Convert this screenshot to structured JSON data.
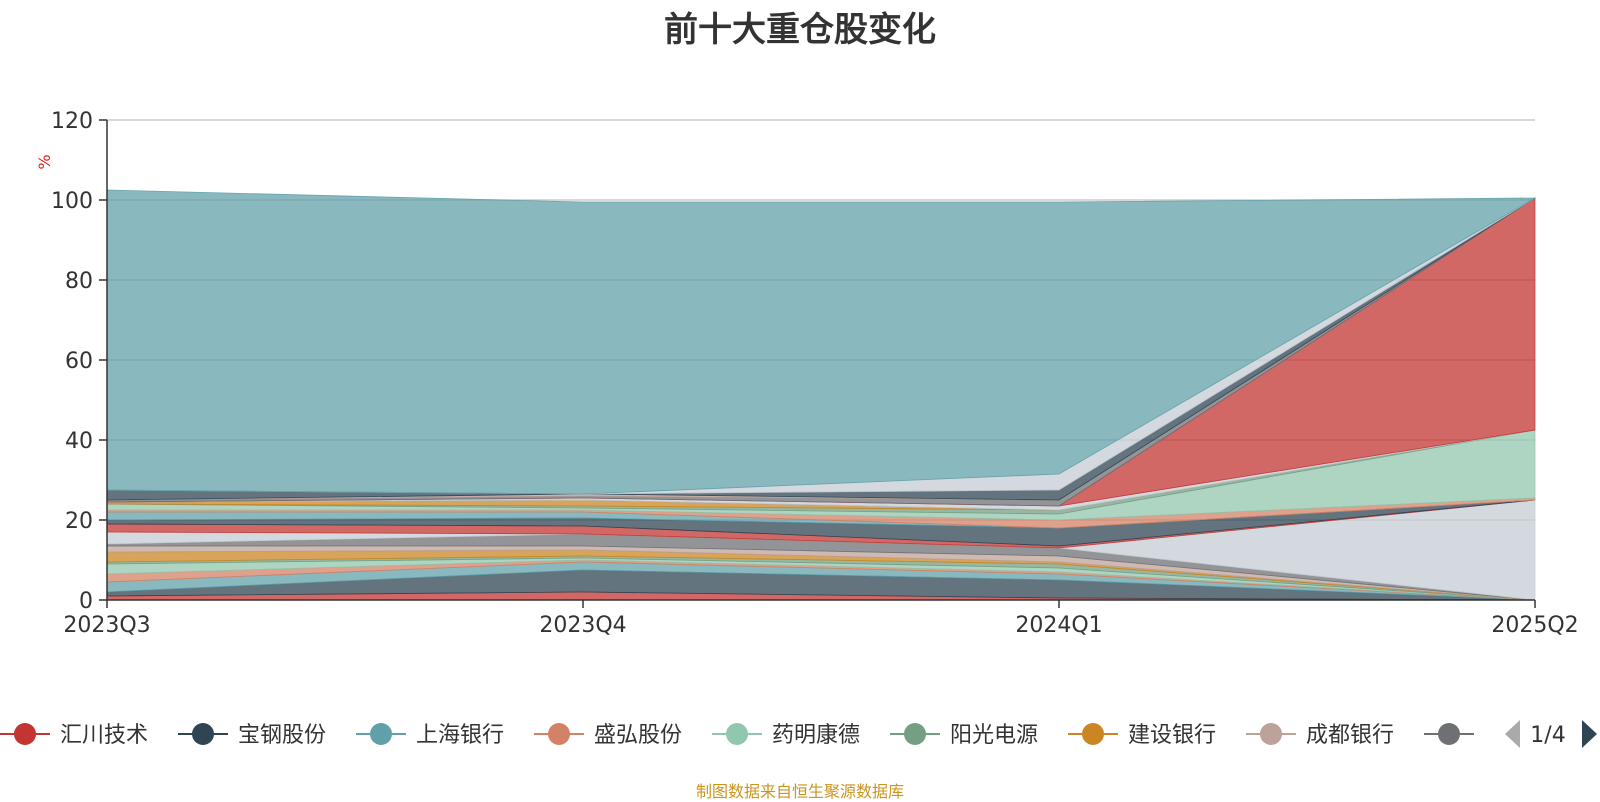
{
  "chart_data": {
    "type": "area",
    "title": "前十大重仓股变化",
    "ylabel": "%",
    "xlabel": "",
    "categories": [
      "2023Q3",
      "2023Q4",
      "2024Q1",
      "2025Q2"
    ],
    "ylim": [
      0,
      120
    ],
    "y_ticks": [
      0,
      20,
      40,
      60,
      80,
      100,
      120
    ],
    "grid": true,
    "stacked": true,
    "legend_position": "bottom",
    "legend_page": "1/4",
    "series": [
      {
        "name": "汇川技术",
        "color": "#c23531",
        "values": [
          1,
          2,
          0.5,
          0
        ]
      },
      {
        "name": "宝钢股份",
        "color": "#2f4554",
        "values": [
          1,
          5.5,
          4.5,
          0
        ]
      },
      {
        "name": "上海银行",
        "color": "#61a0a8",
        "values": [
          2.5,
          2,
          1.5,
          0
        ]
      },
      {
        "name": "盛弘股份",
        "color": "#d48265",
        "values": [
          2,
          0.5,
          0.5,
          0
        ]
      },
      {
        "name": "药明康德",
        "color": "#91c7ae",
        "values": [
          2.5,
          0.5,
          1,
          0
        ]
      },
      {
        "name": "阳光电源",
        "color": "#749f83",
        "values": [
          0.5,
          0.5,
          1,
          0
        ]
      },
      {
        "name": "建设银行",
        "color": "#ca8622",
        "values": [
          2.5,
          1.5,
          0.5,
          0
        ]
      },
      {
        "name": "成都银行",
        "color": "#bda29a",
        "values": [
          1.5,
          1,
          1.5,
          0
        ]
      },
      {
        "name": "",
        "color": "#6e7074",
        "values": [
          0.5,
          3,
          2,
          0
        ]
      },
      {
        "name": "",
        "color": "#c4ccd3",
        "values": [
          3,
          0,
          0,
          25
        ]
      },
      {
        "name": "",
        "color": "#c23531",
        "values": [
          2,
          2,
          0.5,
          0
        ]
      },
      {
        "name": "",
        "color": "#2f4554",
        "values": [
          1,
          2,
          4.5,
          0
        ]
      },
      {
        "name": "",
        "color": "#61a0a8",
        "values": [
          2,
          1.5,
          0,
          0
        ]
      },
      {
        "name": "",
        "color": "#d48265",
        "values": [
          0.5,
          0.5,
          2,
          0.5
        ]
      },
      {
        "name": "",
        "color": "#91c7ae",
        "values": [
          1.5,
          0.5,
          1.5,
          17
        ]
      },
      {
        "name": "",
        "color": "#749f83",
        "values": [
          0,
          0.5,
          1,
          0
        ]
      },
      {
        "name": "",
        "color": "#ca8622",
        "values": [
          0.5,
          1.5,
          0,
          0
        ]
      },
      {
        "name": "",
        "color": "#bda29a",
        "values": [
          0,
          0,
          0,
          0
        ]
      },
      {
        "name": "",
        "color": "#6e7074",
        "values": [
          0,
          0,
          0,
          0
        ]
      },
      {
        "name": "",
        "color": "#c4ccd3",
        "values": [
          0,
          0.5,
          1,
          0
        ]
      },
      {
        "name": "",
        "color": "#c23531",
        "values": [
          0,
          0,
          0,
          58
        ]
      },
      {
        "name": "",
        "color": "#6e7074",
        "values": [
          0.5,
          0.5,
          1.5,
          0
        ]
      },
      {
        "name": "",
        "color": "#bda29a",
        "values": [
          0,
          0.5,
          0,
          0
        ]
      },
      {
        "name": "",
        "color": "#2f4554",
        "values": [
          2.5,
          0,
          2.5,
          0
        ]
      },
      {
        "name": "",
        "color": "#c4ccd3",
        "values": [
          0,
          0,
          4,
          0
        ]
      },
      {
        "name": "",
        "color": "#61a0a8",
        "values": [
          75,
          73,
          68,
          0
        ]
      }
    ]
  },
  "legend_items": [
    {
      "label": "汇川技术",
      "color": "#c23531"
    },
    {
      "label": "宝钢股份",
      "color": "#2f4554"
    },
    {
      "label": "上海银行",
      "color": "#61a0a8"
    },
    {
      "label": "盛弘股份",
      "color": "#d48265"
    },
    {
      "label": "药明康德",
      "color": "#91c7ae"
    },
    {
      "label": "阳光电源",
      "color": "#749f83"
    },
    {
      "label": "建设银行",
      "color": "#ca8622"
    },
    {
      "label": "成都银行",
      "color": "#bda29a"
    },
    {
      "label": "",
      "color": "#6e7074"
    }
  ],
  "source_note": "制图数据来自恒生聚源数据库",
  "icons": {
    "prev": "triangle-left-icon",
    "next": "triangle-right-icon"
  }
}
